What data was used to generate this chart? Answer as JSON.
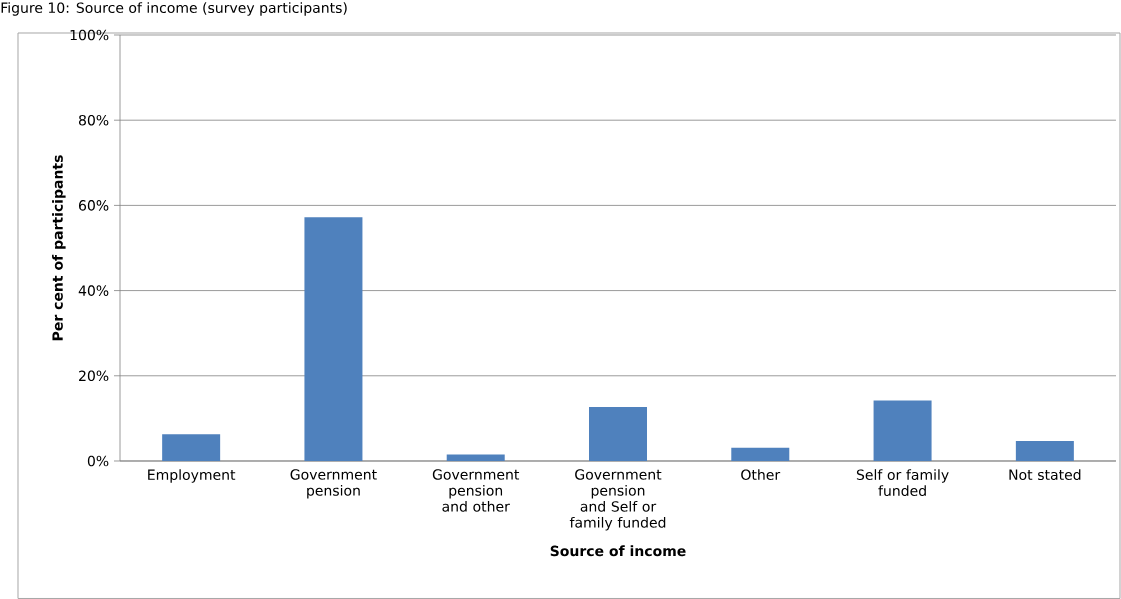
{
  "chart_data": {
    "type": "bar",
    "title": "Figure 10: Source of income (survey participants)",
    "xlabel": "Source of income",
    "ylabel": "Per cent of participants",
    "categories": [
      "Employment",
      "Government pension",
      "Government pension and other",
      "Government pension and Self or family funded",
      "Other",
      "Self or family funded",
      "Not stated"
    ],
    "values": [
      6.3,
      57.2,
      1.5,
      12.7,
      3.1,
      14.2,
      4.7
    ],
    "color": "#4f81bd",
    "ylim": [
      0,
      100
    ],
    "yticks": [
      {
        "value": 0,
        "label": "0%"
      },
      {
        "value": 20,
        "label": "20%"
      },
      {
        "value": 40,
        "label": "40%"
      },
      {
        "value": 60,
        "label": "60%"
      },
      {
        "value": 80,
        "label": "80%"
      },
      {
        "value": 100,
        "label": "100%"
      }
    ],
    "grid": "y"
  }
}
